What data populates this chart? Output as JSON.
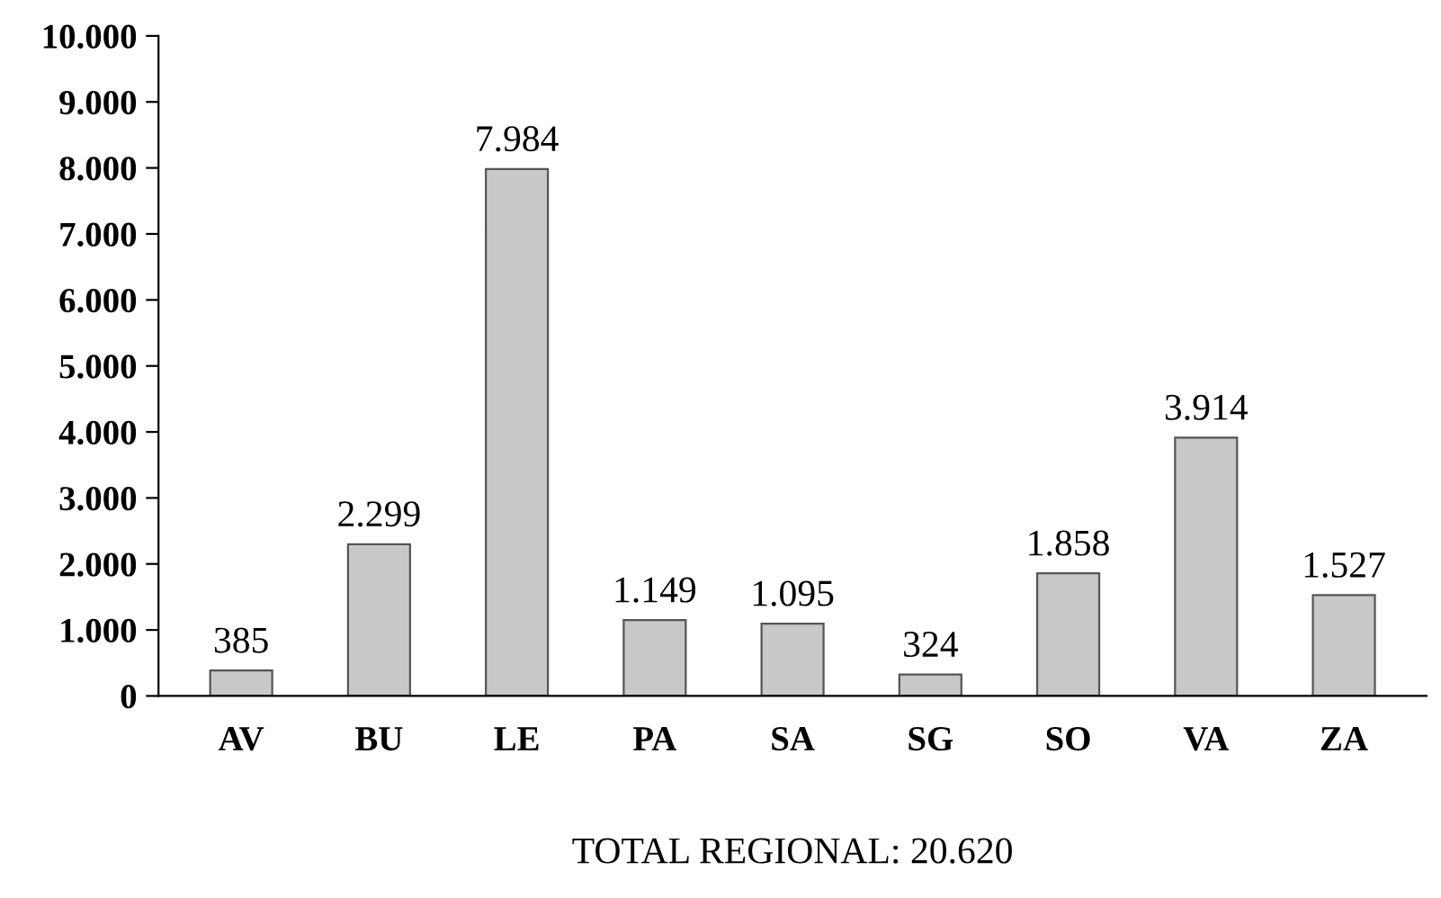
{
  "chart_data": {
    "type": "bar",
    "categories": [
      "AV",
      "BU",
      "LE",
      "PA",
      "SA",
      "SG",
      "SO",
      "VA",
      "ZA"
    ],
    "values": [
      385,
      2299,
      7984,
      1149,
      1095,
      324,
      1858,
      3914,
      1527
    ],
    "value_labels": [
      "385",
      "2.299",
      "7.984",
      "1.149",
      "1.095",
      "324",
      "1.858",
      "3.914",
      "1.527"
    ],
    "color": "#c8c8c8",
    "ylim": [
      0,
      10000
    ],
    "yticks": [
      {
        "value": 0,
        "label": "0"
      },
      {
        "value": 1000,
        "label": "1.000"
      },
      {
        "value": 2000,
        "label": "2.000"
      },
      {
        "value": 3000,
        "label": "3.000"
      },
      {
        "value": 4000,
        "label": "4.000"
      },
      {
        "value": 5000,
        "label": "5.000"
      },
      {
        "value": 6000,
        "label": "6.000"
      },
      {
        "value": 7000,
        "label": "7.000"
      },
      {
        "value": 8000,
        "label": "8.000"
      },
      {
        "value": 9000,
        "label": "9.000"
      },
      {
        "value": 10000,
        "label": "10.000"
      }
    ],
    "annotations": [
      "TOTAL REGIONAL: 20.620"
    ],
    "grid": false,
    "legend": false
  }
}
